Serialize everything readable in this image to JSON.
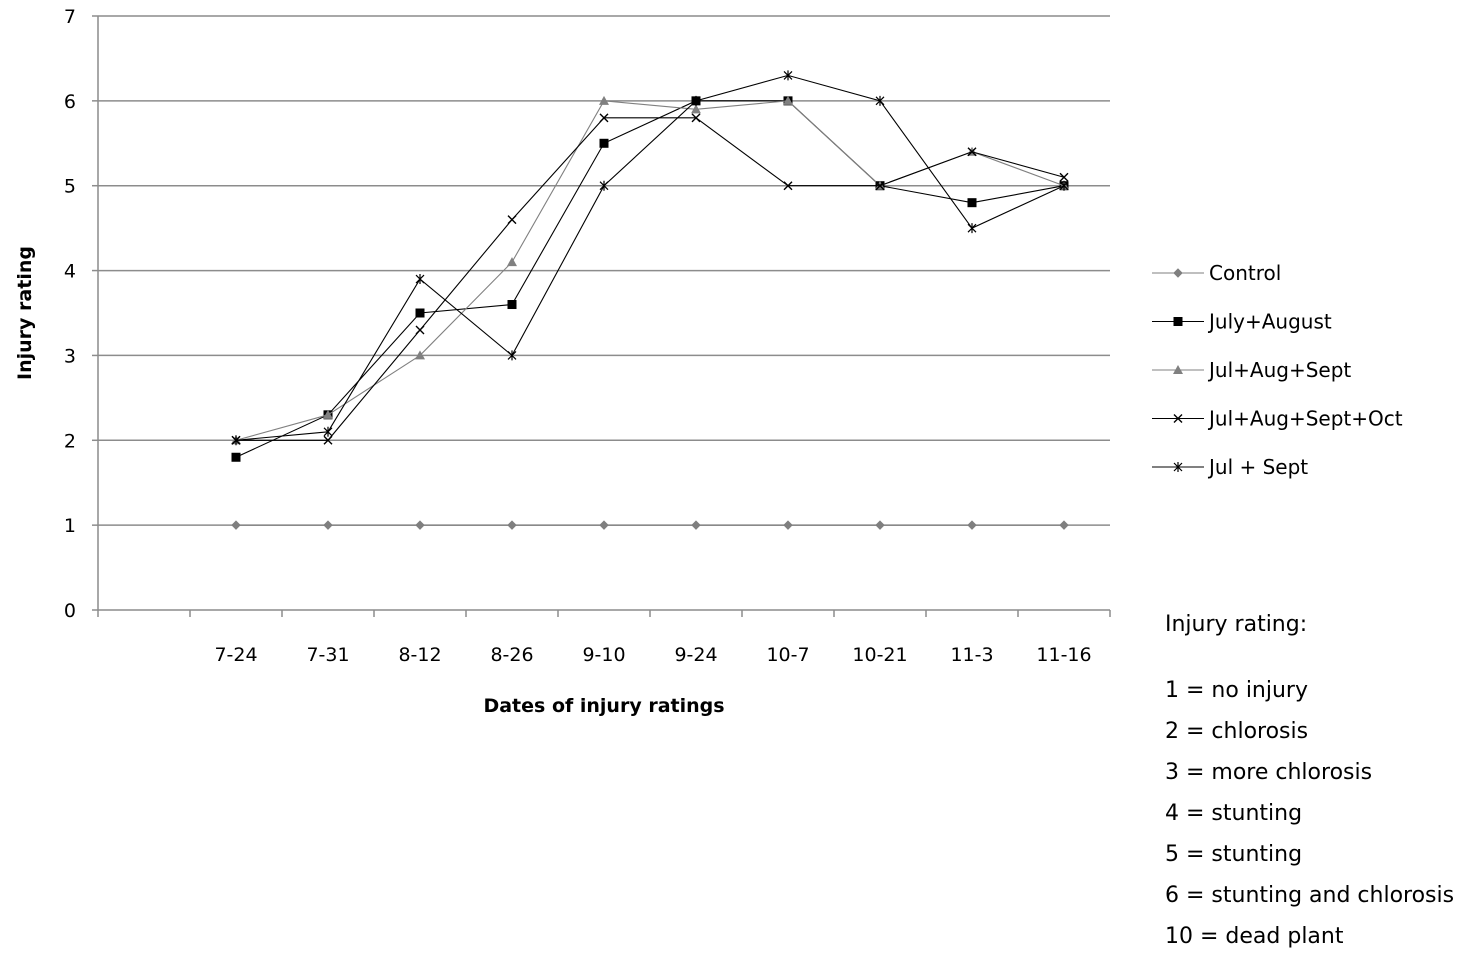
{
  "chart_data": {
    "type": "line",
    "title": "",
    "xlabel": "Dates of injury ratings",
    "ylabel": "Injury rating",
    "ylim": [
      0,
      7
    ],
    "yticks": [
      0,
      1,
      2,
      3,
      4,
      5,
      6,
      7
    ],
    "grid": "horizontal",
    "legend_position": "right",
    "categories": [
      "7-24",
      "7-31",
      "8-12",
      "8-26",
      "9-10",
      "9-24",
      "10-7",
      "10-21",
      "11-3",
      "11-16"
    ],
    "series": [
      {
        "name": "Control",
        "marker": "diamond",
        "color": "#7f7f7f",
        "values": [
          1,
          1,
          1,
          1,
          1,
          1,
          1,
          1,
          1,
          1
        ]
      },
      {
        "name": "July+August",
        "marker": "square",
        "color": "#000000",
        "values": [
          1.8,
          2.3,
          3.5,
          3.6,
          5.5,
          6.0,
          6.0,
          5.0,
          4.8,
          5.0
        ]
      },
      {
        "name": "Jul+Aug+Sept",
        "marker": "triangle",
        "color": "#808080",
        "values": [
          2.0,
          2.3,
          3.0,
          4.1,
          6.0,
          5.9,
          6.0,
          5.0,
          5.4,
          5.0
        ]
      },
      {
        "name": "Jul+Aug+Sept+Oct",
        "marker": "x",
        "color": "#000000",
        "values": [
          2.0,
          2.0,
          3.3,
          4.6,
          5.8,
          5.8,
          5.0,
          5.0,
          5.4,
          5.1
        ]
      },
      {
        "name": "Jul + Sept",
        "marker": "star",
        "color": "#000000",
        "values": [
          2.0,
          2.1,
          3.9,
          3.0,
          5.0,
          6.0,
          6.3,
          6.0,
          4.5,
          5.0
        ]
      }
    ]
  },
  "notes": {
    "heading": "Injury rating:",
    "items": [
      "1 = no injury",
      "2 = chlorosis",
      "3 = more chlorosis",
      "4 = stunting",
      "5 = stunting",
      "6 = stunting and chlorosis",
      "10 = dead plant"
    ]
  }
}
